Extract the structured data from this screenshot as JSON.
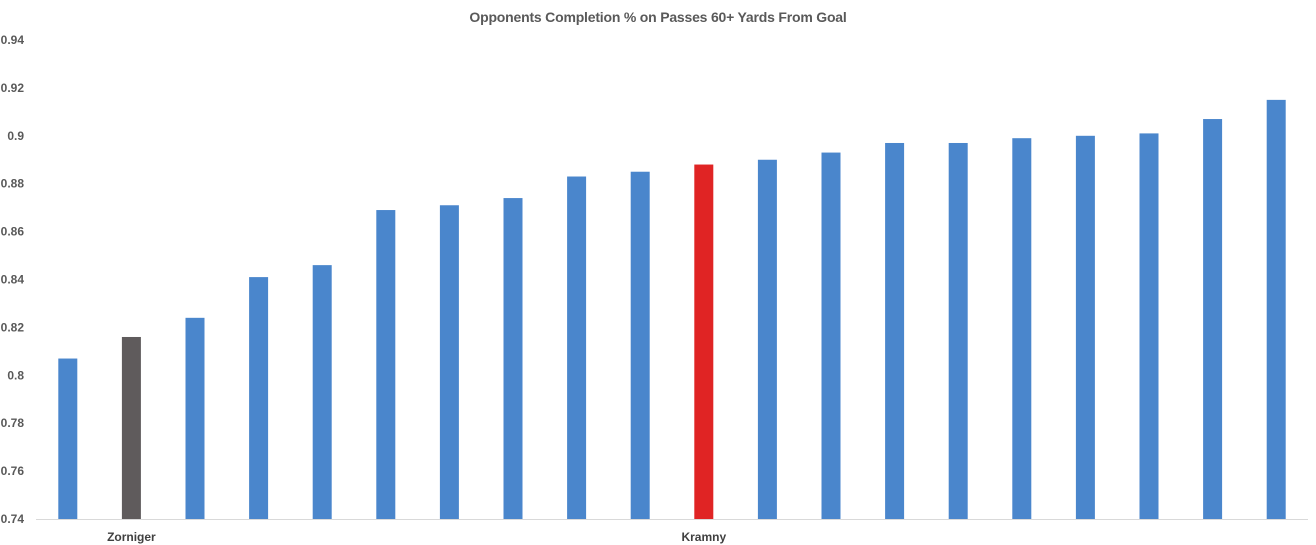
{
  "chart_data": {
    "type": "bar",
    "title": "Opponents Completion % on Passes 60+ Yards From Goal",
    "xlabel": "",
    "ylabel": "",
    "ylim": [
      0.74,
      0.94
    ],
    "yticks": [
      0.74,
      0.76,
      0.78,
      0.8,
      0.82,
      0.84,
      0.86,
      0.88,
      0.9,
      0.92,
      0.94
    ],
    "ytick_labels": [
      "0.74",
      "0.76",
      "0.78",
      "0.8",
      "0.82",
      "0.84",
      "0.86",
      "0.88",
      "0.9",
      "0.92",
      "0.94"
    ],
    "grid": false,
    "legend": "none",
    "categories": [
      "",
      "Zorniger",
      "",
      "",
      "",
      "",
      "",
      "",
      "",
      "",
      "Kramny",
      "",
      "",
      "",
      "",
      "",
      "",
      "",
      "",
      ""
    ],
    "values": [
      0.807,
      0.816,
      0.824,
      0.841,
      0.846,
      0.869,
      0.871,
      0.874,
      0.883,
      0.885,
      0.888,
      0.89,
      0.893,
      0.897,
      0.897,
      0.899,
      0.9,
      0.901,
      0.907,
      0.915
    ],
    "colors": [
      "#4a86cc",
      "#5f5b5c",
      "#4a86cc",
      "#4a86cc",
      "#4a86cc",
      "#4a86cc",
      "#4a86cc",
      "#4a86cc",
      "#4a86cc",
      "#4a86cc",
      "#e02424",
      "#4a86cc",
      "#4a86cc",
      "#4a86cc",
      "#4a86cc",
      "#4a86cc",
      "#4a86cc",
      "#4a86cc",
      "#4a86cc",
      "#4a86cc"
    ],
    "axis_color": "#d9d9d9"
  }
}
